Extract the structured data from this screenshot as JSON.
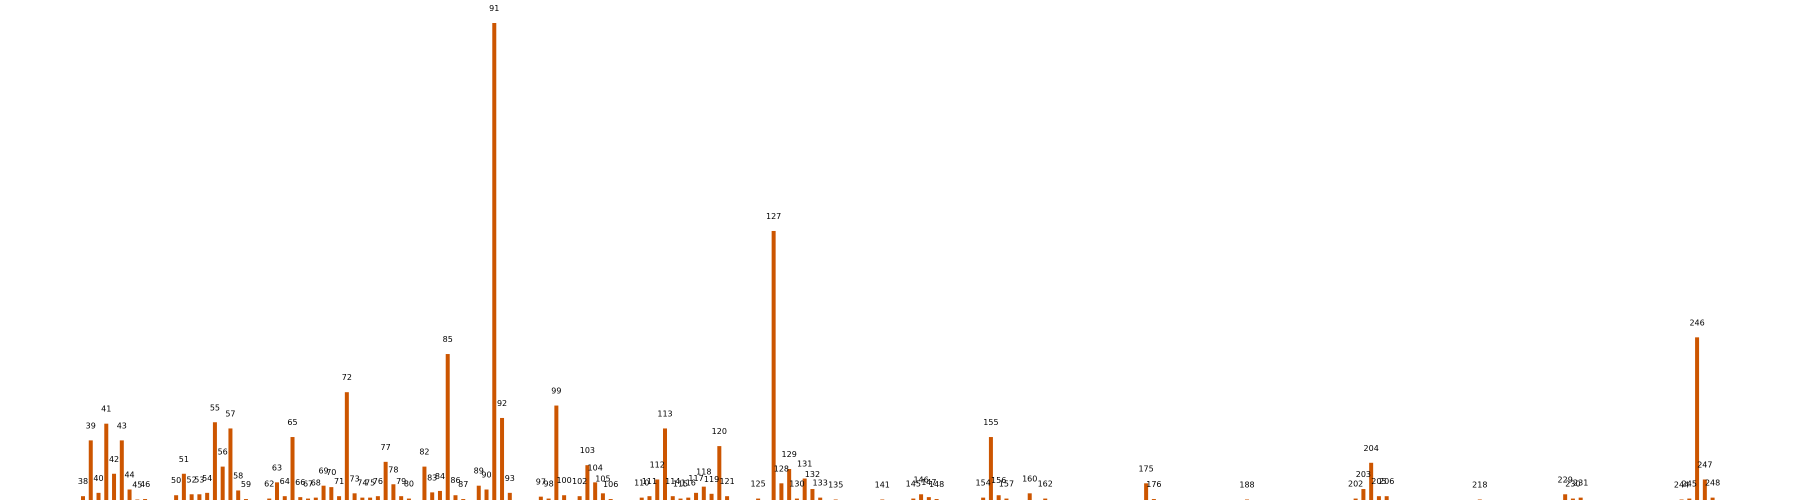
{
  "chart_data": {
    "type": "bar",
    "title": "",
    "xlabel": "",
    "ylabel": "",
    "grid": false,
    "legend": "none",
    "bar_color": "#cc5500",
    "ylim": [
      0,
      100
    ],
    "x_range": [
      28,
      258
    ],
    "values": [
      {
        "x": 38,
        "y": 0.8
      },
      {
        "x": 39,
        "y": 12.5
      },
      {
        "x": 40,
        "y": 1.5
      },
      {
        "x": 41,
        "y": 16.0
      },
      {
        "x": 42,
        "y": 5.5
      },
      {
        "x": 43,
        "y": 12.5
      },
      {
        "x": 44,
        "y": 2.2
      },
      {
        "x": 45,
        "y": 0.1
      },
      {
        "x": 46,
        "y": 0.2
      },
      {
        "x": 50,
        "y": 1.0
      },
      {
        "x": 51,
        "y": 5.5
      },
      {
        "x": 52,
        "y": 1.2
      },
      {
        "x": 53,
        "y": 1.2
      },
      {
        "x": 54,
        "y": 1.5
      },
      {
        "x": 55,
        "y": 16.3
      },
      {
        "x": 56,
        "y": 7.0
      },
      {
        "x": 57,
        "y": 15.0
      },
      {
        "x": 58,
        "y": 2.0
      },
      {
        "x": 59,
        "y": 0.2
      },
      {
        "x": 62,
        "y": 0.3
      },
      {
        "x": 63,
        "y": 3.7
      },
      {
        "x": 64,
        "y": 0.8
      },
      {
        "x": 65,
        "y": 13.2
      },
      {
        "x": 66,
        "y": 0.6
      },
      {
        "x": 67,
        "y": 0.3
      },
      {
        "x": 68,
        "y": 0.5
      },
      {
        "x": 69,
        "y": 3.0
      },
      {
        "x": 70,
        "y": 2.7
      },
      {
        "x": 71,
        "y": 0.8
      },
      {
        "x": 72,
        "y": 22.6
      },
      {
        "x": 73,
        "y": 1.4
      },
      {
        "x": 74,
        "y": 0.5
      },
      {
        "x": 75,
        "y": 0.5
      },
      {
        "x": 76,
        "y": 0.8
      },
      {
        "x": 77,
        "y": 8.0
      },
      {
        "x": 78,
        "y": 3.3
      },
      {
        "x": 79,
        "y": 0.8
      },
      {
        "x": 80,
        "y": 0.3
      },
      {
        "x": 82,
        "y": 7.0
      },
      {
        "x": 83,
        "y": 1.6
      },
      {
        "x": 84,
        "y": 1.9
      },
      {
        "x": 85,
        "y": 30.6
      },
      {
        "x": 86,
        "y": 1.0
      },
      {
        "x": 87,
        "y": 0.2
      },
      {
        "x": 89,
        "y": 3.0
      },
      {
        "x": 90,
        "y": 2.2
      },
      {
        "x": 91,
        "y": 100
      },
      {
        "x": 92,
        "y": 17.2
      },
      {
        "x": 93,
        "y": 1.5
      },
      {
        "x": 97,
        "y": 0.7
      },
      {
        "x": 98,
        "y": 0.3
      },
      {
        "x": 99,
        "y": 19.8
      },
      {
        "x": 100,
        "y": 1.0
      },
      {
        "x": 102,
        "y": 0.8
      },
      {
        "x": 103,
        "y": 7.3
      },
      {
        "x": 104,
        "y": 3.7
      },
      {
        "x": 105,
        "y": 1.4
      },
      {
        "x": 106,
        "y": 0.2
      },
      {
        "x": 110,
        "y": 0.5
      },
      {
        "x": 111,
        "y": 0.8
      },
      {
        "x": 112,
        "y": 4.3
      },
      {
        "x": 113,
        "y": 15.0
      },
      {
        "x": 114,
        "y": 0.8
      },
      {
        "x": 115,
        "y": 0.3
      },
      {
        "x": 116,
        "y": 0.5
      },
      {
        "x": 117,
        "y": 1.5
      },
      {
        "x": 118,
        "y": 2.8
      },
      {
        "x": 119,
        "y": 1.3
      },
      {
        "x": 120,
        "y": 11.3
      },
      {
        "x": 121,
        "y": 0.8
      },
      {
        "x": 125,
        "y": 0.3
      },
      {
        "x": 127,
        "y": 56.4
      },
      {
        "x": 128,
        "y": 3.5
      },
      {
        "x": 129,
        "y": 6.5
      },
      {
        "x": 130,
        "y": 0.3
      },
      {
        "x": 131,
        "y": 4.5
      },
      {
        "x": 132,
        "y": 2.3
      },
      {
        "x": 133,
        "y": 0.5
      },
      {
        "x": 135,
        "y": 0.1
      },
      {
        "x": 141,
        "y": 0.1
      },
      {
        "x": 145,
        "y": 0.3
      },
      {
        "x": 146,
        "y": 1.2
      },
      {
        "x": 147,
        "y": 0.6
      },
      {
        "x": 148,
        "y": 0.2
      },
      {
        "x": 154,
        "y": 0.5
      },
      {
        "x": 155,
        "y": 13.2
      },
      {
        "x": 156,
        "y": 1.0
      },
      {
        "x": 157,
        "y": 0.3
      },
      {
        "x": 160,
        "y": 1.4
      },
      {
        "x": 162,
        "y": 0.3
      },
      {
        "x": 175,
        "y": 3.5
      },
      {
        "x": 176,
        "y": 0.2
      },
      {
        "x": 188,
        "y": 0.1
      },
      {
        "x": 202,
        "y": 0.3
      },
      {
        "x": 203,
        "y": 2.3
      },
      {
        "x": 204,
        "y": 7.8
      },
      {
        "x": 205,
        "y": 0.8
      },
      {
        "x": 206,
        "y": 0.8
      },
      {
        "x": 218,
        "y": 0.1
      },
      {
        "x": 229,
        "y": 1.2
      },
      {
        "x": 230,
        "y": 0.3
      },
      {
        "x": 231,
        "y": 0.5
      },
      {
        "x": 244,
        "y": 0.1
      },
      {
        "x": 245,
        "y": 0.3
      },
      {
        "x": 246,
        "y": 34.1
      },
      {
        "x": 247,
        "y": 4.3
      },
      {
        "x": 248,
        "y": 0.5
      }
    ]
  }
}
